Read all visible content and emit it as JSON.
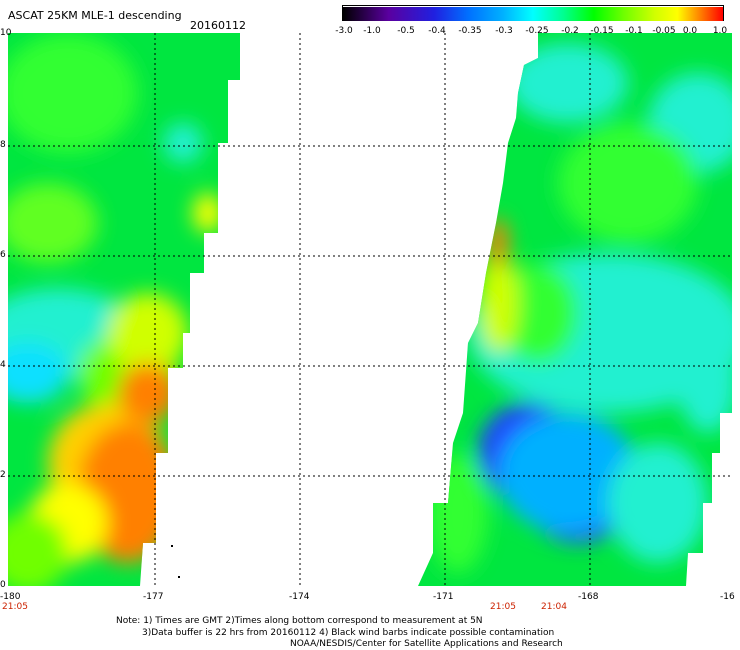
{
  "header": {
    "title": "ASCAT 25KM MLE-1 descending",
    "date": "20160112"
  },
  "colorbar": {
    "labels": [
      "-3.0",
      "-1.0",
      "-0.5",
      "-0.4",
      "-0.35",
      "-0.3",
      "-0.25",
      "-0.2",
      "-0.15",
      "-0.1",
      "-0.05",
      "0.0",
      "1.0"
    ],
    "colors": [
      "#000000",
      "#5a00a0",
      "#2020e0",
      "#0070ff",
      "#00b0ff",
      "#00ffff",
      "#00ff90",
      "#00ff00",
      "#70ff00",
      "#d0ff00",
      "#ffff00",
      "#ff8000",
      "#ff0000"
    ]
  },
  "axes": {
    "x_ticks": [
      "-180",
      "-177",
      "-174",
      "-171",
      "-168",
      "-16"
    ],
    "y_ticks": [
      "10",
      "8",
      "6",
      "4",
      "2",
      "0"
    ]
  },
  "times": {
    "left": "21:05",
    "right_1": "21:05",
    "right_2": "21:04"
  },
  "notes": {
    "line1": "Note: 1) Times are GMT 2)Times along bottom correspond to measurement at 5N",
    "line2": "3)Data buffer is 22 hrs from 20160112 4) Black wind barbs indicate possible contamination",
    "line3": "NOAA/NESDIS/Center for Satellite Applications and Research"
  },
  "colors": {
    "green": "#00e640",
    "bright_green": "#30ff30",
    "cyan": "#20f0d0",
    "blue": "#2040ff",
    "yellow": "#ffff00",
    "orange": "#ff7800",
    "grid": "#000000"
  }
}
